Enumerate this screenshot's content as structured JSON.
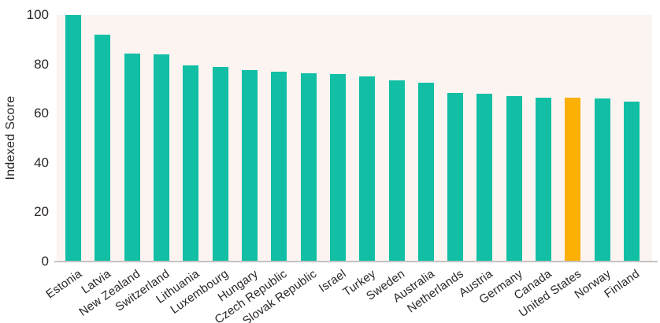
{
  "chart_data": {
    "type": "bar",
    "title": "",
    "xlabel": "",
    "ylabel": "Indexed Score",
    "ylim": [
      0,
      100
    ],
    "yticks": [
      0,
      20,
      40,
      60,
      80,
      100
    ],
    "grid": false,
    "legend_position": "none",
    "categories": [
      "Estonia",
      "Latvia",
      "New Zealand",
      "Switzerland",
      "Lithuania",
      "Luxembourg",
      "Hungary",
      "Czech Republic",
      "Slovak Republic",
      "Israel",
      "Turkey",
      "Sweden",
      "Australia",
      "Netherlands",
      "Austria",
      "Germany",
      "Canada",
      "United States",
      "Norway",
      "Finland"
    ],
    "values": [
      100,
      92,
      84.5,
      84,
      79.5,
      79,
      77.5,
      77,
      76.5,
      76,
      75,
      73.5,
      72.5,
      68.5,
      68,
      67,
      66.5,
      66.5,
      66,
      65
    ],
    "highlight_category": "United States",
    "colors": {
      "bar": "#12bfa5",
      "highlight_bar": "#fcb004",
      "plot_background": "#fbf4f1",
      "page_background": "#ffffff",
      "axis_line": "#c6c3c2",
      "text": "#2b2627"
    }
  }
}
